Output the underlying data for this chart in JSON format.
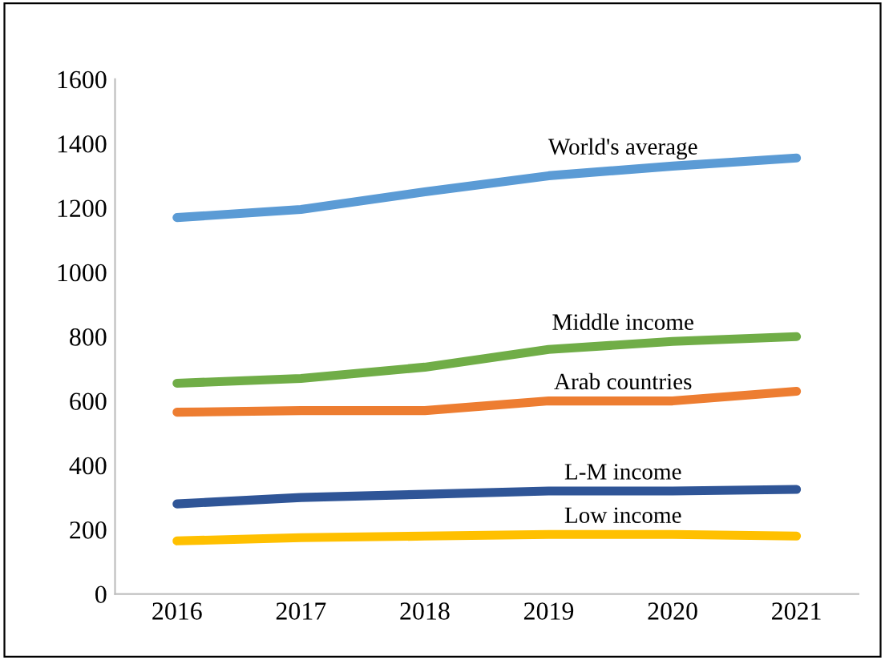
{
  "chart_data": {
    "type": "line",
    "categories": [
      "2016",
      "2017",
      "2018",
      "2019",
      "2020",
      "2021"
    ],
    "series": [
      {
        "name": "World's average",
        "color": "#5b9bd5",
        "values": [
          1170,
          1195,
          1250,
          1300,
          1330,
          1355
        ]
      },
      {
        "name": "Middle income",
        "color": "#70ad47",
        "values": [
          655,
          670,
          705,
          760,
          785,
          800
        ]
      },
      {
        "name": "Arab countries",
        "color": "#ed7d31",
        "values": [
          565,
          570,
          570,
          600,
          600,
          630
        ]
      },
      {
        "name": "L-M income",
        "color": "#2f5597",
        "values": [
          280,
          300,
          310,
          320,
          320,
          325
        ]
      },
      {
        "name": "Low income",
        "color": "#ffc000",
        "values": [
          165,
          175,
          180,
          185,
          185,
          180
        ]
      }
    ],
    "ylim": [
      0,
      1600
    ],
    "yticks": [
      0,
      200,
      400,
      600,
      800,
      1000,
      1200,
      1400,
      1600
    ],
    "grid": false,
    "legend": false,
    "marker": "none",
    "line_style": "solid"
  }
}
